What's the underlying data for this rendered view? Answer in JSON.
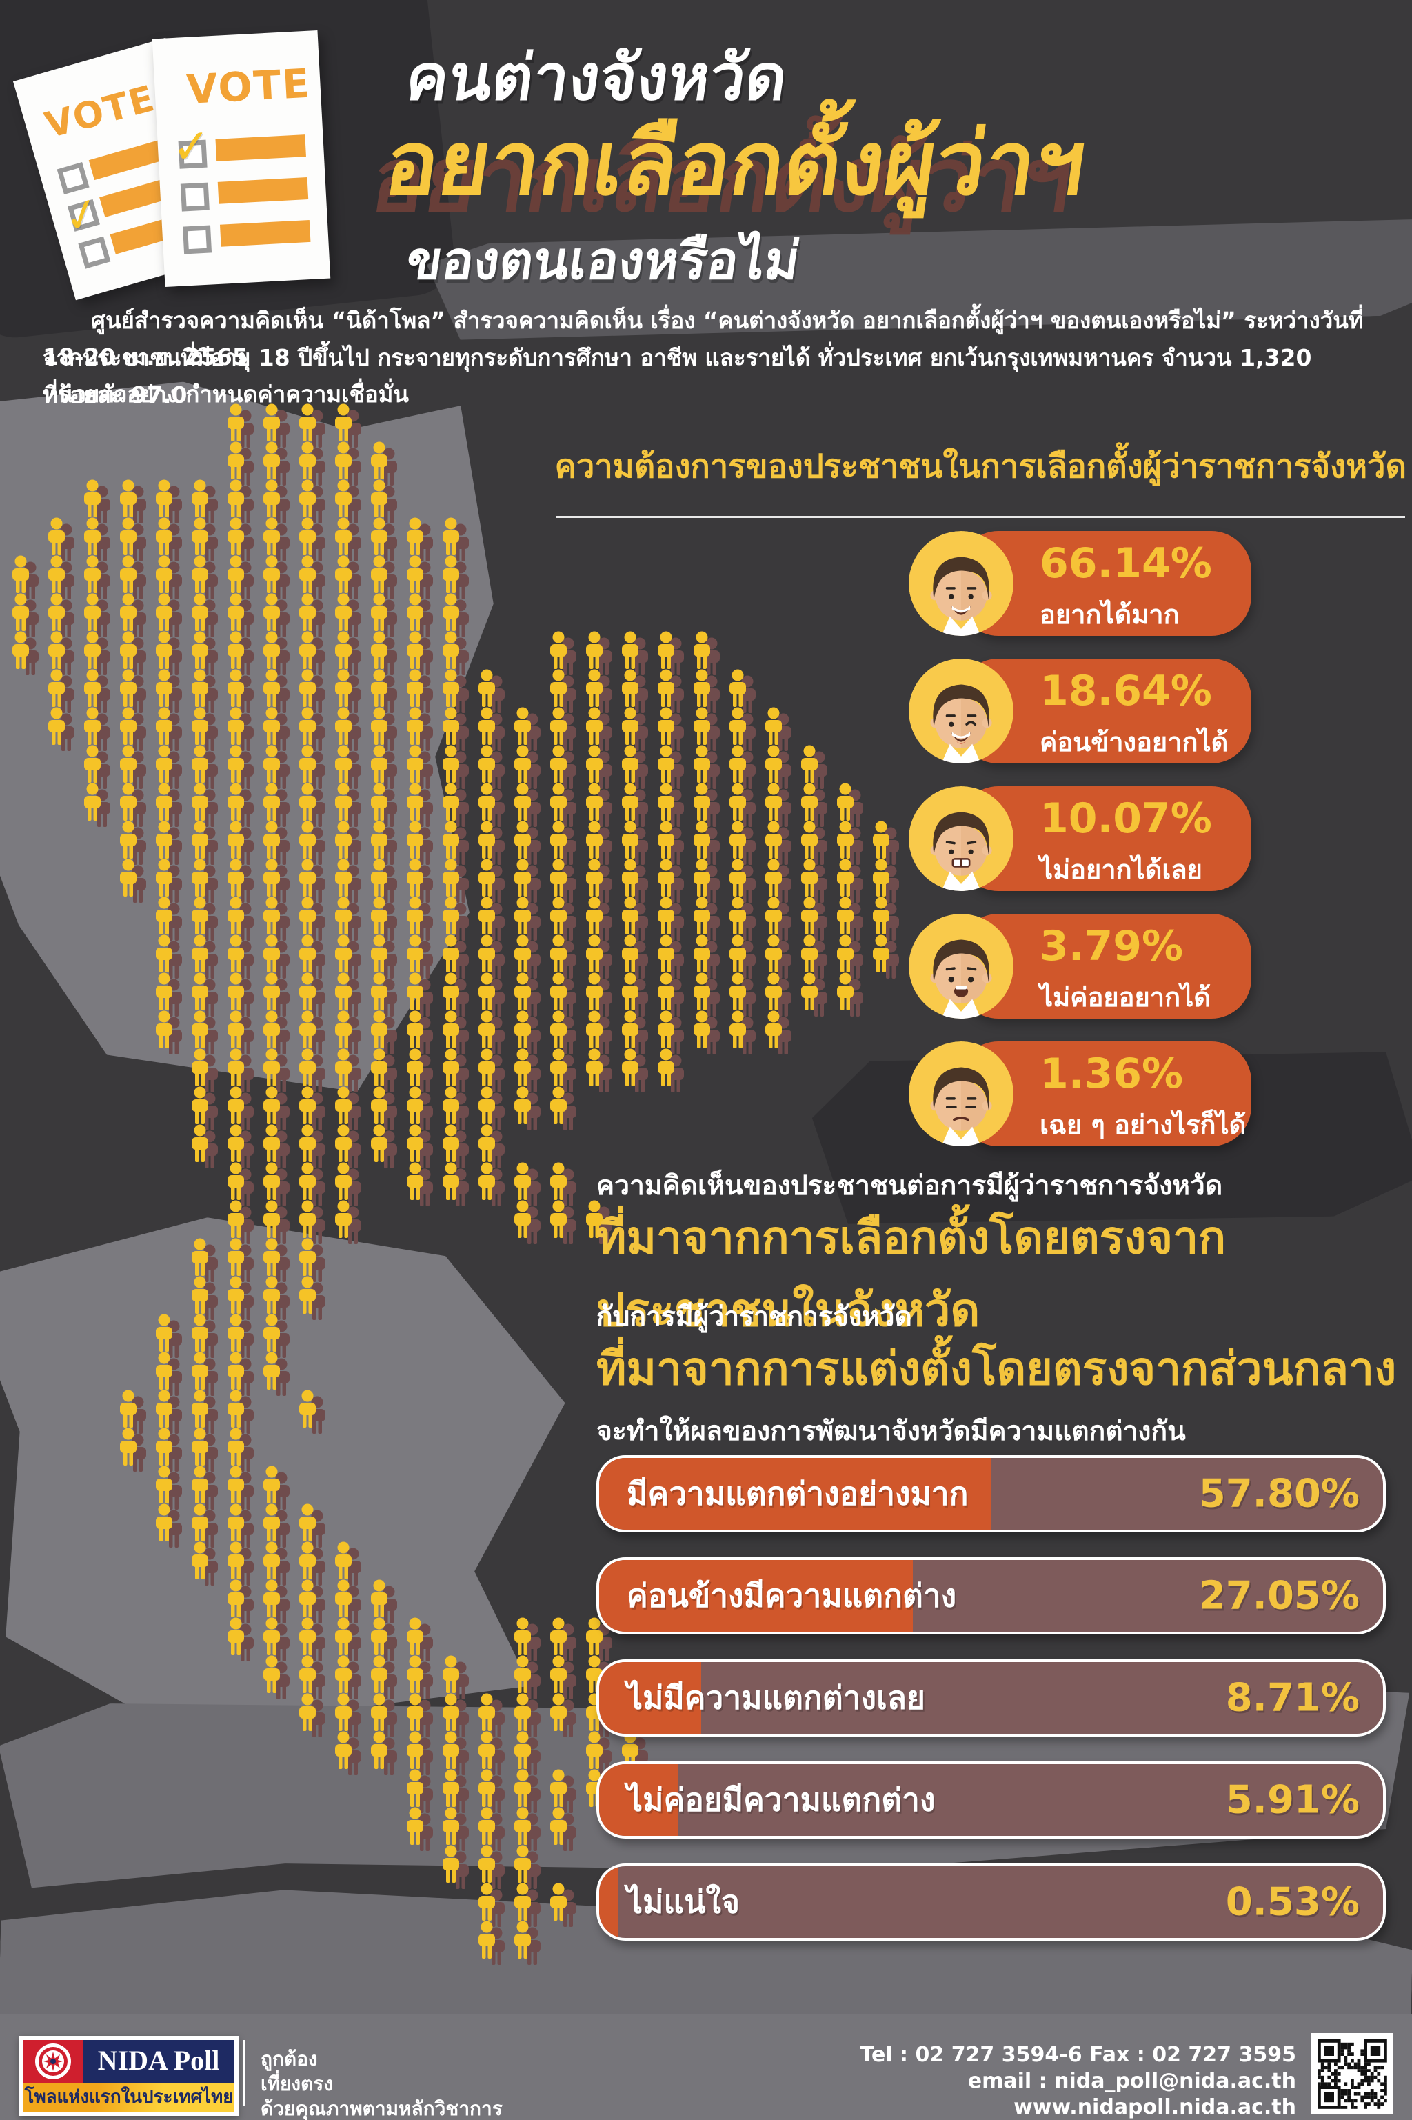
{
  "colors": {
    "background": "#3a393b",
    "accent_orange": "#d0572b",
    "accent_yellow": "#f6c337",
    "person_yellow": "#f5c327",
    "person_shadow": "#6f4c4d",
    "bar_track": "#7e5b5b",
    "logo_red": "#cf1f2e",
    "logo_navy": "#1e2a63",
    "logo_yellow": "#f2a71b",
    "footer_band": "#76757a"
  },
  "header": {
    "ballot_label": "VOTE",
    "title_line1": "คนต่างจังหวัด",
    "title_line2": "อยากเลือกตั้งผู้ว่าฯ",
    "title_line3": "ของตนเองหรือไม่",
    "description_line1": "ศูนย์สำรวจความคิดเห็น “นิด้าโพล” สำรวจความคิดเห็น เรื่อง “คนต่างจังหวัด อยากเลือกตั้งผู้ว่าฯ ของตนเองหรือไม่” ระหว่างวันที่ 18-20 เม.ย. 2565",
    "description_line2": "จากประชาชนที่มีอายุ 18 ปีขึ้นไป กระจายทุกระดับการศึกษา อาชีพ และรายได้ ทั่วประเทศ ยกเว้นกรุงเทพมหานคร จำนวน 1,320 หน่วยตัวอย่าง กำหนดค่าความเชื่อมั่น",
    "description_line3": "ที่ร้อยละ 97.0"
  },
  "chart_data": [
    {
      "type": "bar",
      "title": "ความต้องการของประชาชนในการเลือกตั้งผู้ว่าราชการจังหวัด",
      "categories": [
        "อยากได้มาก",
        "ค่อนข้างอยากได้",
        "ไม่อยากได้เลย",
        "ไม่ค่อยอยากได้",
        "เฉย ๆ อย่างไรก็ได้"
      ],
      "values": [
        66.14,
        18.64,
        10.07,
        3.79,
        1.36
      ],
      "value_labels": [
        "66.14%",
        "18.64%",
        "10.07%",
        "3.79%",
        "1.36%"
      ],
      "moods": [
        "happy",
        "wink",
        "angry",
        "worried",
        "neutral"
      ],
      "legend_position": "none",
      "grid": false
    },
    {
      "type": "bar",
      "title_lines": {
        "line1": "ความคิดเห็นของประชาชนต่อการมีผู้ว่าราชการจังหวัด",
        "line2": "ที่มาจากการเลือกตั้งโดยตรงจากประชาชนในจังหวัด",
        "line3": "กับการมีผู้ว่าราชการจังหวัด",
        "line4": "ที่มาจากการแต่งตั้งโดยตรงจากส่วนกลาง",
        "line5": "จะทำให้ผลของการพัฒนาจังหวัดมีความแตกต่างกัน"
      },
      "categories": [
        "มีความแตกต่างอย่างมาก",
        "ค่อนข้างมีความแตกต่าง",
        "ไม่มีความแตกต่างเลย",
        "ไม่ค่อยมีความแตกต่าง",
        "ไม่แน่ใจ"
      ],
      "values": [
        57.8,
        27.05,
        8.71,
        5.91,
        0.53
      ],
      "value_labels": [
        "57.80%",
        "27.05%",
        "8.71%",
        "5.91%",
        "0.53%"
      ],
      "fill_pct": [
        50,
        40,
        13,
        10,
        2.5
      ],
      "xlim": [
        0,
        100
      ],
      "grid": false,
      "legend_position": "none"
    }
  ],
  "map": {
    "label": "thailand-person-pictogram-map",
    "cols": 25,
    "rows": [
      "......XXXX...............",
      "......XXXXX..............",
      "..XXXXXXXXX..............",
      ".XXXXXXXXXXXX............",
      "XXXXXXXXXXXXX............",
      "XXXXXXXXXXXXX............",
      "XXXXXXXXXXXXX..XXXXX.....",
      ".XXXXXXXXXXXXX.XXXXXX....",
      ".XXXXXXXXXXXXXXXXXXXXX...",
      "..XXXXXXXXXXXXXXXXXXXXX..",
      "..XXXXXXXXXXXXXXXXXXXXXX.",
      "...XXXXXXXXXXXXXXXXXXXXXX",
      "...XXXXXXXXXXXXXXXXXXXXXX",
      "....XXXXXXXXXXXXXXXXXXXXX",
      "....XXXXXXXXXXXXXXXXXXXXX",
      "....XXXXXXXXXXXXXXXXXXXX.",
      "....XXXXXXXXXXXXXXXXXX...",
      ".....XXXXXXXXXXXXXX......",
      ".....XXXXXXXXXXX.........",
      ".....XXXXXXXXX...........",
      "......XXXX.XXXXX.........",
      "......XXXX....XXX........",
      ".....XXXX................",
      ".....XXXX................",
      "....XXXX.................",
      "....XXXX.................",
      "...XXXX.X................",
      "...XXXX..................",
      "....XXXX.................",
      "....XXXXX................",
      ".....XXXXX...............",
      "......XXXXX..............",
      "......XXXXXX..XXX........",
      ".......XXXXXX.XXX........",
      "........XXXXXXXXX........",
      ".........XXXXXX.XX.......",
      "...........XXXXXX........",
      "...........XXXXX.........",
      "............XXX..........",
      ".............XXX.........",
      ".............XX.........."
    ]
  },
  "footer": {
    "logo_title": "NIDA Poll",
    "logo_subtitle": "โพลแห่งแรกในประเทศไทย",
    "slogan_line1": "ถูกต้อง",
    "slogan_line2": "เที่ยงตรง",
    "slogan_line3": "ด้วยคุณภาพตามหลักวิชาการ",
    "tel_line": "Tel : 02 727 3594-6 Fax : 02 727 3595",
    "email_line": "email : nida_poll@nida.ac.th",
    "web_line": "www.nidapoll.nida.ac.th"
  }
}
